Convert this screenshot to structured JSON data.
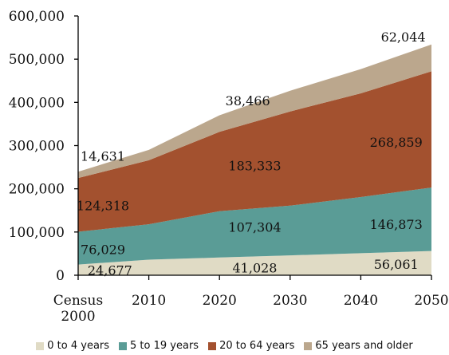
{
  "chart_data": {
    "type": "area",
    "stacked": true,
    "x": [
      2000,
      2010,
      2020,
      2030,
      2040,
      2050
    ],
    "x_tick_labels": [
      "Census\n2000",
      "2010",
      "2020",
      "2030",
      "2040",
      "2050"
    ],
    "ylim": [
      0,
      600000
    ],
    "y_ticks": [
      0,
      100000,
      200000,
      300000,
      400000,
      500000,
      600000
    ],
    "y_tick_labels": [
      "0",
      "100,000",
      "200,000",
      "300,000",
      "400,000",
      "500,000",
      "600,000"
    ],
    "legend_position": "bottom",
    "series": [
      {
        "name": "0 to 4 years",
        "color": "#e0dbc5",
        "values": [
          24677,
          36000,
          41028,
          46000,
          51000,
          56061
        ]
      },
      {
        "name": "5 to 19 years",
        "color": "#5a9c96",
        "values": [
          76029,
          82000,
          107304,
          115000,
          130000,
          146873
        ]
      },
      {
        "name": "20 to 64 years",
        "color": "#a3512f",
        "values": [
          124318,
          148000,
          183333,
          218000,
          240000,
          268859
        ]
      },
      {
        "name": "65 years and older",
        "color": "#bba78d",
        "values": [
          14631,
          24000,
          38466,
          48000,
          56000,
          62044
        ]
      }
    ],
    "data_labels": [
      {
        "text": "24,677",
        "x": 2004.5,
        "y": 12000
      },
      {
        "text": "41,028",
        "x": 2025,
        "y": 18000
      },
      {
        "text": "56,061",
        "x": 2045,
        "y": 26000
      },
      {
        "text": "76,029",
        "x": 2003.5,
        "y": 60000
      },
      {
        "text": "107,304",
        "x": 2025,
        "y": 112000
      },
      {
        "text": "146,873",
        "x": 2045,
        "y": 118000
      },
      {
        "text": "124,318",
        "x": 2003.5,
        "y": 162000
      },
      {
        "text": "183,333",
        "x": 2025,
        "y": 254000
      },
      {
        "text": "268,859",
        "x": 2045,
        "y": 308000
      },
      {
        "text": "14,631",
        "x": 2003.5,
        "y": 276000
      },
      {
        "text": "38,466",
        "x": 2024,
        "y": 404000
      },
      {
        "text": "62,044",
        "x": 2046,
        "y": 552000
      }
    ]
  }
}
